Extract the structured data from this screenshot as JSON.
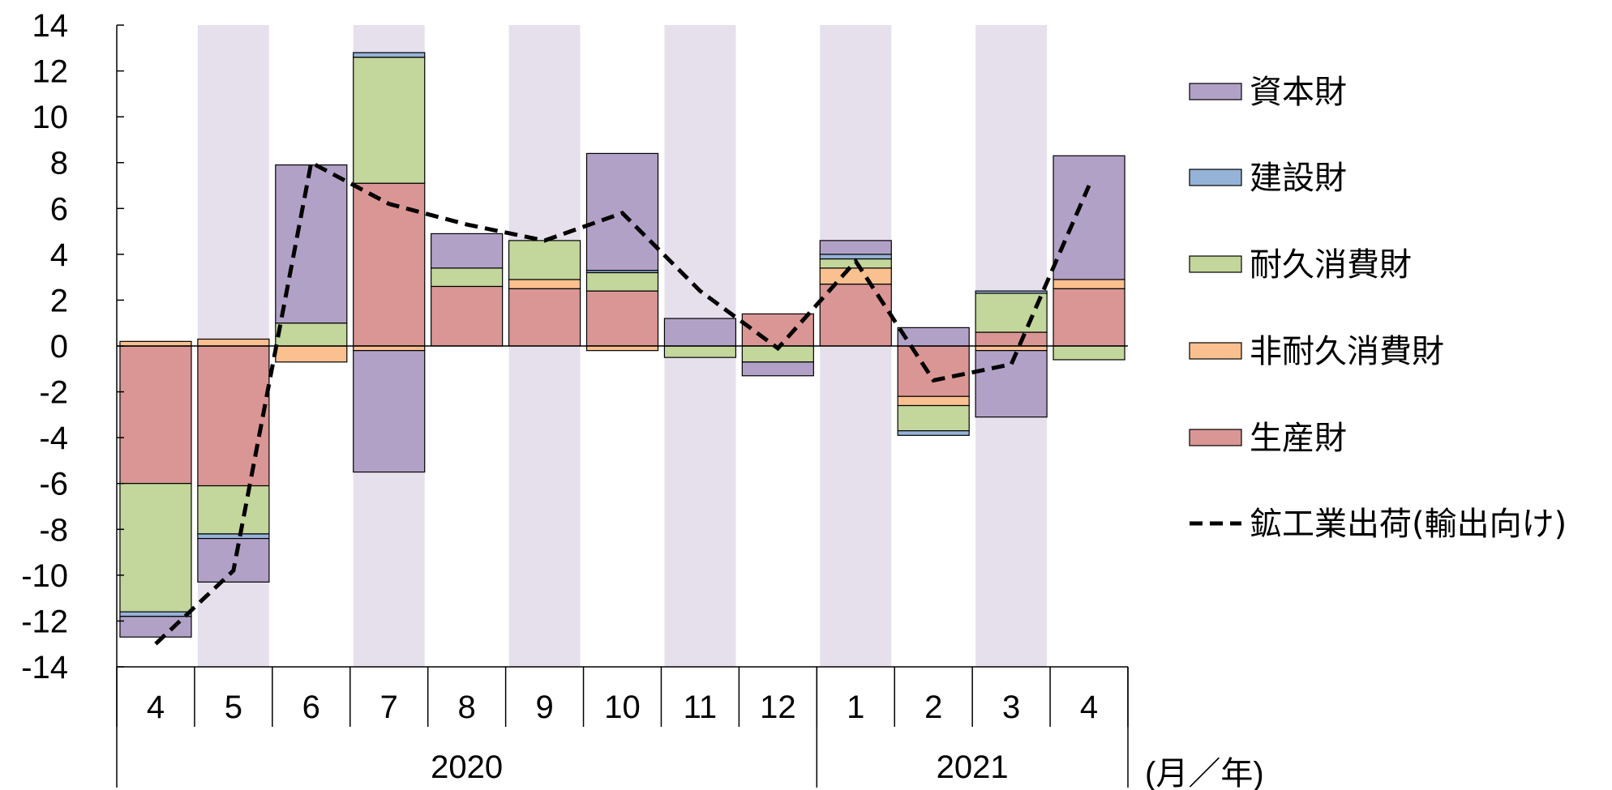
{
  "chart_data": {
    "type": "bar",
    "stacked": true,
    "categories": [
      "4",
      "5",
      "6",
      "7",
      "8",
      "9",
      "10",
      "11",
      "12",
      "1",
      "2",
      "3",
      "4"
    ],
    "year_groups": [
      {
        "label": "2020",
        "span": 9
      },
      {
        "label": "2021",
        "span": 4
      }
    ],
    "unit_label": "(月／年)",
    "ylim": [
      -14,
      14
    ],
    "yticks": [
      "14",
      "12",
      "10",
      "8",
      "6",
      "4",
      "2",
      "0",
      "-2",
      "-4",
      "-6",
      "-8",
      "-10",
      "-12",
      "-14"
    ],
    "ytick_values": [
      14,
      12,
      10,
      8,
      6,
      4,
      2,
      0,
      -2,
      -4,
      -6,
      -8,
      -10,
      -12,
      -14
    ],
    "shaded_categories": [
      1,
      3,
      5,
      7,
      9,
      11
    ],
    "series": [
      {
        "name": "生産財",
        "color": "#da9694",
        "values": [
          -6.0,
          -6.1,
          0,
          7.1,
          2.6,
          2.5,
          2.4,
          0,
          1.4,
          2.7,
          -2.2,
          0.6,
          2.5
        ]
      },
      {
        "name": "非耐久消費財",
        "color": "#fac090",
        "values": [
          0.2,
          0.3,
          -0.7,
          -0.2,
          0,
          0.4,
          -0.2,
          0,
          0,
          0.7,
          -0.4,
          -0.2,
          0.4
        ]
      },
      {
        "name": "耐久消費財",
        "color": "#c3d69b",
        "values": [
          -5.6,
          -2.1,
          1.0,
          5.5,
          0.8,
          1.7,
          0.8,
          -0.5,
          -0.7,
          0.4,
          -1.1,
          1.7,
          -0.6
        ]
      },
      {
        "name": "建設財",
        "color": "#95b3d7",
        "values": [
          -0.2,
          -0.2,
          0,
          0.2,
          0,
          0,
          0.1,
          0,
          0,
          0.2,
          -0.2,
          0.1,
          0
        ]
      },
      {
        "name": "資本財",
        "color": "#b2a1c7",
        "values": [
          -0.9,
          -1.9,
          6.9,
          -5.3,
          1.5,
          0,
          5.1,
          1.2,
          -0.6,
          0.6,
          0.8,
          -2.9,
          5.4
        ]
      }
    ],
    "line_series": {
      "name": "鉱工業出荷(輸出向け)",
      "values": [
        -13.0,
        -9.8,
        8.0,
        6.2,
        5.3,
        4.6,
        5.8,
        2.4,
        -0.1,
        3.7,
        -1.5,
        -0.8,
        7.0
      ]
    },
    "legend_order": [
      "資本財",
      "建設財",
      "耐久消費財",
      "非耐久消費財",
      "生産財",
      "鉱工業出荷(輸出向け)"
    ],
    "legend_position": "right"
  }
}
